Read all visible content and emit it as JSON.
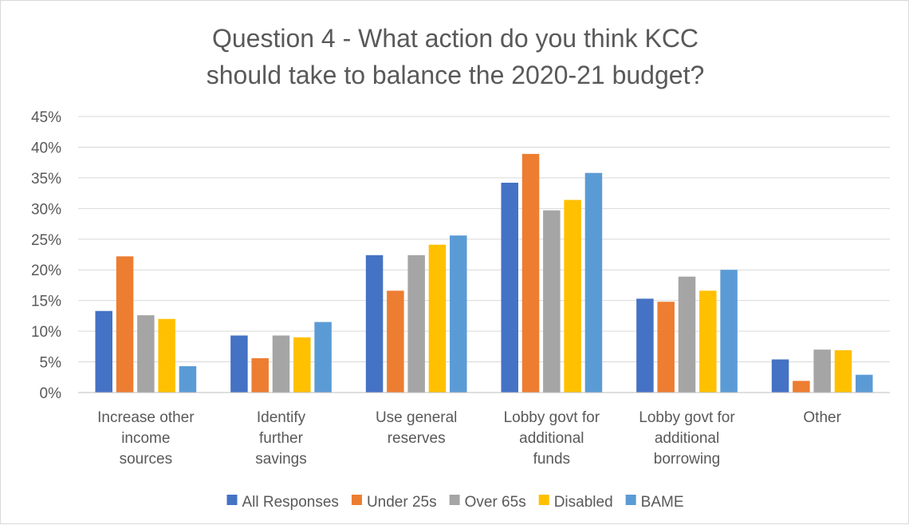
{
  "chart_data": {
    "type": "bar",
    "title": "Question 4 - What action do you think KCC should take to balance the 2020-21 budget?",
    "title_lines": [
      "Question 4 - What action do you think KCC",
      "should take to balance the 2020-21 budget?"
    ],
    "categories": [
      "Increase other income sources",
      "Identify further savings",
      "Use general reserves",
      "Lobby govt for additional funds",
      "Lobby govt for additional borrowing",
      "Other"
    ],
    "category_label_lines": [
      [
        "Increase other",
        "income",
        "sources"
      ],
      [
        "Identify",
        "further",
        "savings"
      ],
      [
        "Use general",
        "reserves"
      ],
      [
        "Lobby govt for",
        "additional",
        "funds"
      ],
      [
        "Lobby govt for",
        "additional",
        "borrowing"
      ],
      [
        "Other"
      ]
    ],
    "series": [
      {
        "name": "All Responses",
        "color": "#4472c4",
        "values": [
          13.3,
          9.3,
          22.4,
          34.2,
          15.3,
          5.4
        ]
      },
      {
        "name": "Under 25s",
        "color": "#ed7d31",
        "values": [
          22.2,
          5.6,
          16.6,
          38.9,
          14.8,
          1.9
        ]
      },
      {
        "name": "Over 65s",
        "color": "#a5a5a5",
        "values": [
          12.6,
          9.3,
          22.4,
          29.7,
          18.9,
          7.0
        ]
      },
      {
        "name": "Disabled",
        "color": "#ffc000",
        "values": [
          12.0,
          9.0,
          24.1,
          31.4,
          16.6,
          6.9
        ]
      },
      {
        "name": "BAME",
        "color": "#5b9bd5",
        "values": [
          4.3,
          11.5,
          25.6,
          35.8,
          20.0,
          2.9
        ]
      }
    ],
    "yticks": [
      "0%",
      "5%",
      "10%",
      "15%",
      "20%",
      "25%",
      "30%",
      "35%",
      "40%",
      "45%"
    ],
    "ylim": [
      0,
      45
    ],
    "xlabel": "",
    "ylabel": "",
    "grid": true,
    "legend": "bottom"
  }
}
